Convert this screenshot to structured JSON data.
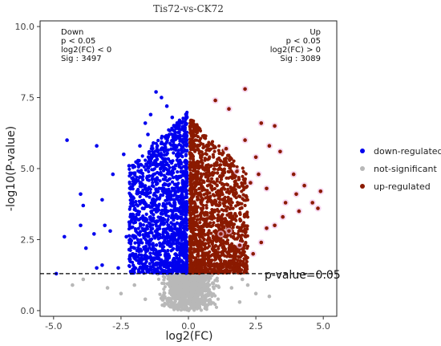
{
  "chart_data": {
    "type": "scatter",
    "title": "Tis72-vs-CK72",
    "xlabel": "log2(FC)",
    "ylabel": "-log10(P-value)",
    "xlim": [
      -5.5,
      5.5
    ],
    "ylim": [
      -0.2,
      10.2
    ],
    "x_ticks": [
      -5.0,
      -2.5,
      0.0,
      2.5,
      5.0
    ],
    "x_tick_labels": [
      "-5.0",
      "-2.5",
      "0.0",
      "2.5",
      "5.0"
    ],
    "y_ticks": [
      0.0,
      2.5,
      5.0,
      7.5,
      10.0
    ],
    "y_tick_labels": [
      "0.0",
      "2.5",
      "5.0",
      "7.5",
      "10.0"
    ],
    "grid": false,
    "legend_position": "right",
    "threshold_y": 1.3,
    "threshold_label": "p-value=0.05",
    "annotation_down": [
      "Down",
      "p < 0.05",
      "log2(FC) < 0",
      "Sig : 3497"
    ],
    "annotation_up": [
      "Up",
      "p < 0.05",
      "log2(FC) > 0",
      "Sig : 3089"
    ],
    "series": [
      {
        "name": "down-regulated",
        "color": "#0000ee",
        "points": [
          [
            -4.5,
            6.0
          ],
          [
            -3.4,
            5.8
          ],
          [
            -4.0,
            4.1
          ],
          [
            -3.9,
            3.7
          ],
          [
            -3.2,
            3.9
          ],
          [
            -2.4,
            5.5
          ],
          [
            -2.2,
            5.1
          ],
          [
            -2.8,
            4.8
          ],
          [
            -3.1,
            3.0
          ],
          [
            -2.9,
            2.8
          ],
          [
            -3.5,
            2.7
          ],
          [
            -4.0,
            3.0
          ],
          [
            -4.6,
            2.6
          ],
          [
            -3.8,
            2.2
          ],
          [
            -3.2,
            1.6
          ],
          [
            -3.4,
            1.5
          ],
          [
            -2.6,
            1.5
          ],
          [
            -2.0,
            2.2
          ],
          [
            -1.8,
            1.8
          ],
          [
            -4.9,
            1.3
          ],
          [
            -1.2,
            7.7
          ],
          [
            -1.0,
            7.5
          ],
          [
            -0.8,
            7.2
          ],
          [
            -1.4,
            6.9
          ],
          [
            -1.6,
            6.6
          ],
          [
            -1.8,
            5.8
          ],
          [
            -2.0,
            4.6
          ],
          [
            -1.9,
            4.2
          ],
          [
            -1.7,
            3.6
          ],
          [
            -2.1,
            3.2
          ],
          [
            -2.3,
            2.6
          ],
          [
            -1.5,
            6.2
          ],
          [
            -1.3,
            5.9
          ],
          [
            -0.6,
            6.8
          ],
          [
            -0.5,
            6.2
          ]
        ],
        "cloud": {
          "x_range": [
            -2.2,
            -0.05
          ],
          "y_max": 7.0,
          "count": 1600,
          "seed": 11
        }
      },
      {
        "name": "not-significant",
        "color": "#b8b8b8",
        "points": [
          [
            -3.9,
            1.1
          ],
          [
            -3.0,
            0.8
          ],
          [
            -2.5,
            0.6
          ],
          [
            -2.0,
            0.9
          ],
          [
            -1.6,
            0.4
          ],
          [
            -4.3,
            0.9
          ],
          [
            1.6,
            0.8
          ],
          [
            2.0,
            1.1
          ],
          [
            2.5,
            0.6
          ],
          [
            1.9,
            0.3
          ],
          [
            2.2,
            0.9
          ],
          [
            3.0,
            0.5
          ]
        ],
        "cloud": {
          "x_range": [
            -1.3,
            1.3
          ],
          "y_max": 1.28,
          "count": 900,
          "seed": 23
        }
      },
      {
        "name": "up-regulated",
        "color": "#8b1a00",
        "points": [
          [
            2.1,
            7.8
          ],
          [
            1.0,
            7.4
          ],
          [
            1.5,
            7.1
          ],
          [
            2.7,
            6.6
          ],
          [
            3.2,
            6.5
          ],
          [
            3.0,
            5.8
          ],
          [
            3.4,
            5.6
          ],
          [
            2.1,
            6.0
          ],
          [
            2.5,
            5.4
          ],
          [
            3.9,
            4.8
          ],
          [
            4.3,
            4.4
          ],
          [
            4.0,
            4.1
          ],
          [
            4.6,
            3.8
          ],
          [
            4.9,
            4.2
          ],
          [
            4.8,
            3.6
          ],
          [
            3.6,
            3.8
          ],
          [
            3.2,
            3.0
          ],
          [
            2.9,
            2.9
          ],
          [
            3.5,
            3.3
          ],
          [
            4.1,
            3.5
          ],
          [
            2.7,
            2.4
          ],
          [
            2.4,
            2.0
          ],
          [
            1.9,
            2.3
          ],
          [
            1.2,
            2.7
          ],
          [
            1.5,
            2.8
          ],
          [
            2.6,
            4.8
          ],
          [
            2.3,
            4.5
          ],
          [
            1.8,
            4.9
          ],
          [
            2.9,
            4.3
          ],
          [
            1.4,
            5.7
          ]
        ],
        "cloud": {
          "x_range": [
            0.05,
            2.2
          ],
          "y_max": 6.8,
          "count": 1600,
          "seed": 37
        }
      }
    ]
  }
}
